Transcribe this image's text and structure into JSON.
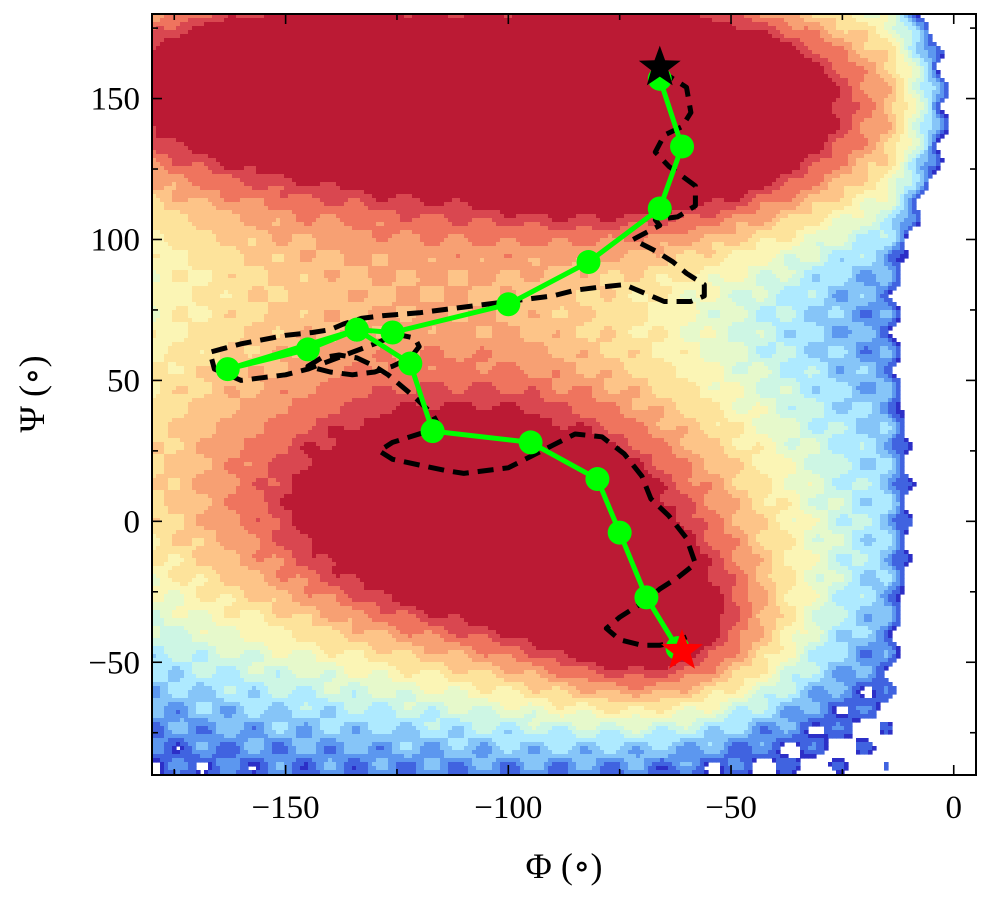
{
  "chart_data": {
    "type": "contour",
    "xlabel": "Φ (∘)",
    "ylabel": "Ψ (∘)",
    "xlim": [
      -180,
      5
    ],
    "ylim": [
      -90,
      180
    ],
    "xticks": [
      -150,
      -100,
      -50,
      0
    ],
    "yticks": [
      -50,
      0,
      50,
      100,
      150
    ],
    "xtick_labels": [
      "−150",
      "−100",
      "−50",
      "0"
    ],
    "ytick_labels": [
      "−50",
      "0",
      "50",
      "100",
      "150"
    ],
    "grid": false,
    "colormap": "RdYlBu_r",
    "contour_levels": 12,
    "basins": [
      {
        "x": -62,
        "y": 145,
        "depth": 1.0
      },
      {
        "x": -160,
        "y": 160,
        "depth": 0.6
      },
      {
        "x": -105,
        "y": 0,
        "depth": 0.78
      },
      {
        "x": -63,
        "y": -42,
        "depth": 0.82
      }
    ],
    "series": [
      {
        "style": "green-line-markers",
        "color": "#00ff00",
        "x": [
          -66,
          -61,
          -66,
          -82,
          -100,
          -126,
          -134,
          -145,
          -163,
          -134,
          -122,
          -117,
          -95,
          -80,
          -75,
          -69,
          -62
        ],
        "y": [
          157,
          133,
          111,
          92,
          77,
          67,
          68,
          61,
          54,
          68,
          56,
          32,
          28,
          15,
          -4,
          -27,
          -45
        ]
      },
      {
        "style": "black-dashed",
        "color": "#000000",
        "x": [
          -66,
          -60,
          -59,
          -61,
          -65,
          -67,
          -64,
          -58,
          -58,
          -62,
          -67,
          -66,
          -72,
          -67,
          -63,
          -60,
          -56,
          -56,
          -59,
          -65,
          -68,
          -71,
          -74,
          -80,
          -85,
          -90,
          -95,
          -100,
          -110,
          -120,
          -128,
          -133,
          -137,
          -140,
          -144,
          -150,
          -160,
          -167,
          -166,
          -160,
          -150,
          -145,
          -140,
          -135,
          -130,
          -127,
          -124,
          -121,
          -120,
          -122,
          -126,
          -130,
          -135,
          -140,
          -145,
          -142,
          -138,
          -134,
          -130,
          -127,
          -124,
          -121,
          -119,
          -117,
          -116,
          -118,
          -122,
          -126,
          -129,
          -126,
          -120,
          -114,
          -110,
          -100,
          -95,
          -90,
          -85,
          -79,
          -74,
          -70,
          -68,
          -64,
          -60,
          -58,
          -62,
          -66,
          -69,
          -72,
          -75,
          -78,
          -75,
          -70,
          -66,
          -63,
          -60
        ],
        "y": [
          160,
          154,
          145,
          140,
          137,
          131,
          126,
          119,
          112,
          108,
          107,
          105,
          100,
          96,
          92,
          88,
          84,
          80,
          78,
          78,
          80,
          82,
          84,
          83,
          82,
          80,
          79,
          78,
          76,
          74,
          73,
          72,
          70,
          68,
          67,
          66,
          63,
          60,
          54,
          50,
          52,
          54,
          57,
          60,
          63,
          65,
          66,
          65,
          62,
          58,
          55,
          53,
          52,
          53,
          55,
          58,
          59,
          58,
          55,
          52,
          48,
          44,
          41,
          38,
          35,
          32,
          30,
          28,
          25,
          22,
          20,
          18,
          17,
          19,
          23,
          27,
          31,
          30,
          24,
          16,
          8,
          2,
          -6,
          -15,
          -20,
          -24,
          -28,
          -31,
          -34,
          -38,
          -42,
          -44,
          -44,
          -43,
          -41
        ]
      }
    ],
    "markers": [
      {
        "name": "start",
        "symbol": "star",
        "color": "#000000",
        "x": -66,
        "y": 161
      },
      {
        "name": "end",
        "symbol": "star",
        "color": "#ff0000",
        "x": -61,
        "y": -46
      }
    ]
  }
}
